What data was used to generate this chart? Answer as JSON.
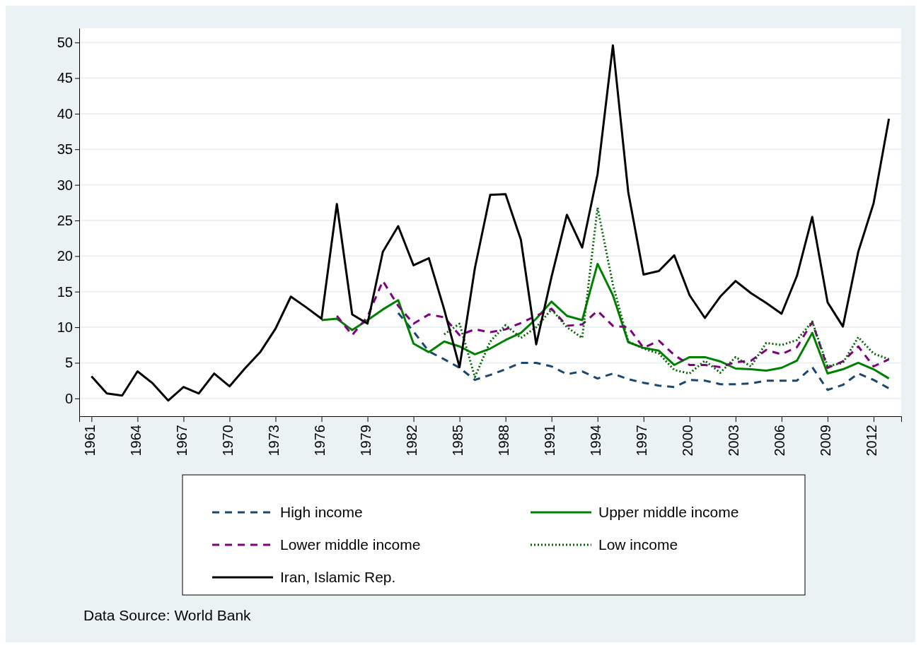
{
  "chart_data": {
    "type": "line",
    "x": [
      1961,
      1962,
      1963,
      1964,
      1965,
      1966,
      1967,
      1968,
      1969,
      1970,
      1971,
      1972,
      1973,
      1974,
      1975,
      1976,
      1977,
      1978,
      1979,
      1980,
      1981,
      1982,
      1983,
      1984,
      1985,
      1986,
      1987,
      1988,
      1989,
      1990,
      1991,
      1992,
      1993,
      1994,
      1995,
      1996,
      1997,
      1998,
      1999,
      2000,
      2001,
      2002,
      2003,
      2004,
      2005,
      2006,
      2007,
      2008,
      2009,
      2010,
      2011,
      2012,
      2013
    ],
    "xlim": [
      1960.2,
      2013.8
    ],
    "xticks": [
      1961,
      1964,
      1967,
      1970,
      1973,
      1976,
      1979,
      1982,
      1985,
      1988,
      1991,
      1994,
      1997,
      2000,
      2003,
      2006,
      2009,
      2012
    ],
    "ylim": [
      -2.5,
      52
    ],
    "yticks": [
      0,
      5,
      10,
      15,
      20,
      25,
      30,
      35,
      40,
      45,
      50
    ],
    "grid": "y",
    "legend": "bottom",
    "annotations": [
      "Data Source: World Bank"
    ],
    "series": [
      {
        "name": "High income",
        "color": "#1a476f",
        "line_style": "dashed",
        "values": [
          null,
          null,
          null,
          null,
          null,
          null,
          null,
          null,
          null,
          null,
          null,
          null,
          null,
          null,
          null,
          null,
          null,
          null,
          null,
          null,
          12.0,
          9.4,
          6.6,
          5.5,
          4.3,
          2.6,
          3.3,
          4.1,
          5.0,
          5.0,
          4.5,
          3.4,
          3.8,
          2.8,
          3.5,
          2.7,
          2.2,
          1.8,
          1.6,
          2.6,
          2.5,
          2.0,
          2.0,
          2.1,
          2.5,
          2.5,
          2.5,
          4.4,
          1.2,
          1.9,
          3.5,
          2.6,
          1.4
        ]
      },
      {
        "name": "Upper middle income",
        "color": "#008000",
        "line_style": "solid",
        "values": [
          null,
          null,
          null,
          null,
          null,
          null,
          null,
          null,
          null,
          null,
          null,
          null,
          null,
          null,
          null,
          11.0,
          11.2,
          9.6,
          11.0,
          12.5,
          13.8,
          7.7,
          6.5,
          8.0,
          7.3,
          6.2,
          7.0,
          8.2,
          9.2,
          11.2,
          13.6,
          11.6,
          11.0,
          18.9,
          14.5,
          7.9,
          7.1,
          6.7,
          4.7,
          5.8,
          5.8,
          5.2,
          4.2,
          4.1,
          3.9,
          4.3,
          5.3,
          9.2,
          3.5,
          4.1,
          5.0,
          4.1,
          2.8
        ]
      },
      {
        "name": "Lower middle income",
        "color": "#800080",
        "line_style": "dashed",
        "values": [
          null,
          null,
          null,
          null,
          null,
          null,
          null,
          null,
          null,
          null,
          null,
          null,
          null,
          null,
          null,
          null,
          11.6,
          8.9,
          11.5,
          16.5,
          13.0,
          10.5,
          11.8,
          11.4,
          8.9,
          9.7,
          9.3,
          9.7,
          10.6,
          11.6,
          12.6,
          10.2,
          10.4,
          12.3,
          10.2,
          10.0,
          7.1,
          8.1,
          6.1,
          4.7,
          4.7,
          4.4,
          5.1,
          5.3,
          6.8,
          6.2,
          7.2,
          10.7,
          4.3,
          5.2,
          7.3,
          4.5,
          5.5
        ]
      },
      {
        "name": "Low income",
        "color": "#006400",
        "line_style": "dotted",
        "values": [
          null,
          null,
          null,
          null,
          null,
          null,
          null,
          null,
          null,
          null,
          null,
          null,
          null,
          null,
          null,
          null,
          null,
          null,
          null,
          null,
          null,
          null,
          null,
          9.0,
          10.5,
          3.0,
          8.0,
          10.3,
          8.5,
          10.0,
          12.5,
          10.0,
          8.5,
          26.8,
          16.0,
          8.0,
          7.0,
          6.3,
          4.0,
          3.5,
          5.3,
          3.6,
          5.8,
          4.5,
          7.8,
          7.5,
          8.2,
          10.8,
          4.5,
          5.0,
          8.6,
          6.3,
          5.5
        ]
      },
      {
        "name": "Iran, Islamic Rep.",
        "color": "#000000",
        "line_style": "solid",
        "values": [
          3.1,
          0.7,
          0.4,
          3.8,
          2.1,
          -0.3,
          1.6,
          0.7,
          3.5,
          1.7,
          4.2,
          6.5,
          9.8,
          14.3,
          12.8,
          11.2,
          27.3,
          11.8,
          10.5,
          20.6,
          24.2,
          18.7,
          19.7,
          12.5,
          4.4,
          18.3,
          28.6,
          28.7,
          22.3,
          7.6,
          17.1,
          25.8,
          21.2,
          31.5,
          49.6,
          29.0,
          17.4,
          17.9,
          20.1,
          14.5,
          11.3,
          14.3,
          16.5,
          14.8,
          13.4,
          11.9,
          17.2,
          25.5,
          13.5,
          10.1,
          20.6,
          27.4,
          39.3
        ]
      }
    ]
  }
}
